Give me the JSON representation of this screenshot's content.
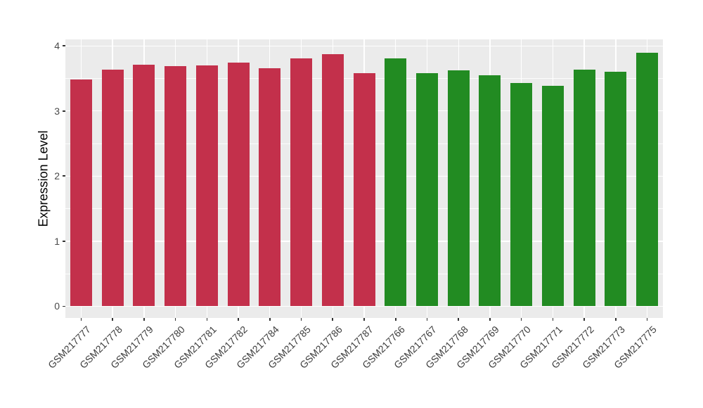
{
  "figure": {
    "background": "#FFFFFF",
    "panel_background": "#EBEBEB",
    "gridline_color": "#FFFFFF",
    "axis_text_color": "#4A4A4A",
    "axis_title_color": "#000000"
  },
  "chart_data": {
    "type": "bar",
    "title": "",
    "xlabel": "",
    "ylabel": "Expression Level",
    "ylim": [
      -0.18,
      4.1
    ],
    "yticks": [
      0,
      1,
      2,
      3,
      4
    ],
    "yminor": [
      0.5,
      1.5,
      2.5,
      3.5
    ],
    "grid": true,
    "legend": "none",
    "categories": [
      "GSM217777",
      "GSM217778",
      "GSM217779",
      "GSM217780",
      "GSM217781",
      "GSM217782",
      "GSM217784",
      "GSM217785",
      "GSM217786",
      "GSM217787",
      "GSM217766",
      "GSM217767",
      "GSM217768",
      "GSM217769",
      "GSM217770",
      "GSM217771",
      "GSM217772",
      "GSM217773",
      "GSM217775"
    ],
    "values": [
      3.48,
      3.63,
      3.71,
      3.69,
      3.7,
      3.74,
      3.66,
      3.81,
      3.87,
      3.58,
      3.81,
      3.58,
      3.62,
      3.55,
      3.43,
      3.39,
      3.63,
      3.6,
      3.9
    ],
    "groups": [
      "A",
      "A",
      "A",
      "A",
      "A",
      "A",
      "A",
      "A",
      "A",
      "A",
      "B",
      "B",
      "B",
      "B",
      "B",
      "B",
      "B",
      "B",
      "B"
    ],
    "group_colors": {
      "A": "#C3304B",
      "B": "#228B22"
    }
  }
}
